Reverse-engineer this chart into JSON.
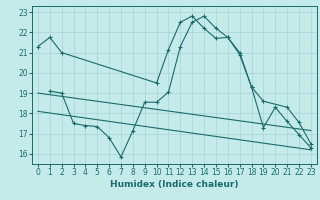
{
  "title": "",
  "xlabel": "Humidex (Indice chaleur)",
  "ylabel": "",
  "background_color": "#c5eaea",
  "grid_color": "#a8d4d4",
  "line_color": "#1a6b6b",
  "xlim": [
    -0.5,
    23.5
  ],
  "ylim": [
    15.5,
    23.3
  ],
  "xticks": [
    0,
    1,
    2,
    3,
    4,
    5,
    6,
    7,
    8,
    9,
    10,
    11,
    12,
    13,
    14,
    15,
    16,
    17,
    18,
    19,
    20,
    21,
    22,
    23
  ],
  "yticks": [
    16,
    17,
    18,
    19,
    20,
    21,
    22,
    23
  ],
  "lines": [
    {
      "x": [
        0,
        1,
        2,
        10,
        11,
        12,
        13,
        14,
        15,
        16,
        17,
        18,
        19,
        21,
        22,
        23
      ],
      "y": [
        21.3,
        21.75,
        21.0,
        19.5,
        21.15,
        22.5,
        22.8,
        22.2,
        21.7,
        21.75,
        20.9,
        19.3,
        18.6,
        18.3,
        17.55,
        16.5
      ],
      "marker": "+"
    },
    {
      "x": [
        1,
        2,
        3,
        4,
        5,
        6,
        7,
        8,
        9,
        10,
        11,
        12,
        13,
        14,
        15,
        16,
        17,
        18,
        19,
        20,
        21,
        22,
        23
      ],
      "y": [
        19.1,
        19.0,
        17.5,
        17.4,
        17.35,
        16.8,
        15.85,
        17.15,
        18.55,
        18.55,
        19.05,
        21.3,
        22.5,
        22.8,
        22.2,
        21.75,
        21.0,
        19.3,
        17.3,
        18.3,
        17.6,
        16.95,
        16.3
      ],
      "marker": "+"
    },
    {
      "x": [
        0,
        23
      ],
      "y": [
        19.0,
        17.15
      ],
      "marker": null
    },
    {
      "x": [
        0,
        23
      ],
      "y": [
        18.1,
        16.2
      ],
      "marker": null
    }
  ]
}
